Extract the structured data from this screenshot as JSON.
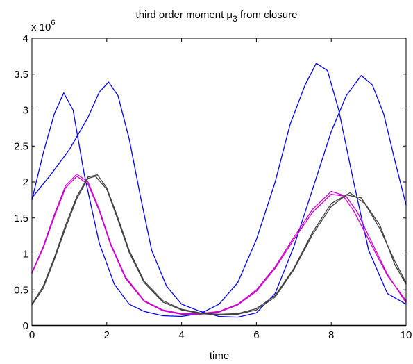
{
  "chart_data": {
    "type": "line",
    "title": "third order moment μ₃ from closure",
    "title_parts": {
      "prefix": "third order moment ",
      "symbol": "μ",
      "subscript": "3",
      "suffix": " from closure"
    },
    "xlabel": "time",
    "ylabel": "",
    "y_scale_note": {
      "base": "x 10",
      "exponent": "6"
    },
    "xlim": [
      0,
      10
    ],
    "ylim": [
      0,
      4
    ],
    "x_ticks": [
      0,
      2,
      4,
      6,
      8,
      10
    ],
    "x_tick_labels": [
      "0",
      "2",
      "4",
      "6",
      "8",
      "10"
    ],
    "y_ticks": [
      0,
      0.5,
      1,
      1.5,
      2,
      2.5,
      3,
      3.5,
      4
    ],
    "y_tick_labels": [
      "0",
      "0.5",
      "1",
      "1.5",
      "2",
      "2.5",
      "3",
      "3.5",
      "4"
    ],
    "grid": false,
    "legend": "none",
    "series": [
      {
        "color": "#0000ff",
        "x": [
          0,
          0.3,
          0.6,
          0.85,
          1.1,
          1.4,
          1.8,
          2.2,
          2.6,
          3.0,
          3.5,
          4.0,
          4.5,
          5.0,
          5.5,
          6.0,
          6.5,
          6.9,
          7.3,
          7.6,
          7.9,
          8.2,
          8.6,
          9.0,
          9.5,
          10.0
        ],
        "y": [
          1.75,
          2.4,
          2.95,
          3.24,
          3.0,
          2.1,
          1.15,
          0.58,
          0.3,
          0.2,
          0.14,
          0.13,
          0.17,
          0.3,
          0.6,
          1.2,
          2.0,
          2.8,
          3.35,
          3.65,
          3.55,
          3.0,
          2.0,
          1.05,
          0.45,
          0.3
        ]
      },
      {
        "color": "#0000ff",
        "x": [
          0,
          0.5,
          1.0,
          1.5,
          1.8,
          2.05,
          2.3,
          2.6,
          2.9,
          3.2,
          3.6,
          4.0,
          4.5,
          5.0,
          5.5,
          6.0,
          6.5,
          7.0,
          7.5,
          8.0,
          8.4,
          8.8,
          9.1,
          9.4,
          9.7,
          10.0
        ],
        "y": [
          1.78,
          2.1,
          2.45,
          2.9,
          3.25,
          3.39,
          3.2,
          2.6,
          1.8,
          1.05,
          0.55,
          0.3,
          0.2,
          0.13,
          0.12,
          0.18,
          0.45,
          1.1,
          1.9,
          2.7,
          3.2,
          3.48,
          3.35,
          2.95,
          2.3,
          1.68
        ]
      },
      {
        "color": "#cc00cc",
        "x": [
          0,
          0.3,
          0.6,
          0.9,
          1.2,
          1.5,
          1.8,
          2.1,
          2.5,
          3.0,
          3.5,
          4.0,
          4.5,
          5.0,
          5.5,
          6.0,
          6.5,
          7.0,
          7.5,
          8.0,
          8.3,
          8.6,
          9.0,
          9.5,
          10.0
        ],
        "y": [
          0.74,
          1.1,
          1.55,
          1.95,
          2.11,
          2.0,
          1.62,
          1.15,
          0.68,
          0.35,
          0.22,
          0.17,
          0.17,
          0.2,
          0.3,
          0.5,
          0.82,
          1.23,
          1.62,
          1.87,
          1.82,
          1.6,
          1.2,
          0.7,
          0.35
        ]
      },
      {
        "color": "#cc00cc",
        "x": [
          0,
          0.3,
          0.6,
          0.9,
          1.2,
          1.5,
          1.8,
          2.1,
          2.5,
          3.0,
          3.5,
          4.0,
          4.5,
          5.0,
          5.5,
          6.0,
          6.5,
          7.0,
          7.5,
          8.0,
          8.4,
          8.7,
          9.0,
          9.5,
          10.0
        ],
        "y": [
          0.73,
          1.08,
          1.52,
          1.92,
          2.08,
          1.97,
          1.6,
          1.13,
          0.66,
          0.34,
          0.21,
          0.16,
          0.16,
          0.19,
          0.29,
          0.48,
          0.8,
          1.2,
          1.58,
          1.83,
          1.8,
          1.58,
          1.25,
          0.72,
          0.32
        ]
      },
      {
        "color": "#404040",
        "x": [
          0,
          0.3,
          0.6,
          0.9,
          1.2,
          1.5,
          1.75,
          2.0,
          2.3,
          2.6,
          3.0,
          3.5,
          4.0,
          4.5,
          5.0,
          5.5,
          6.0,
          6.5,
          7.0,
          7.5,
          8.0,
          8.5,
          8.9,
          9.3,
          9.7,
          10.0
        ],
        "y": [
          0.3,
          0.55,
          0.95,
          1.4,
          1.8,
          2.07,
          2.1,
          1.92,
          1.5,
          1.05,
          0.62,
          0.35,
          0.23,
          0.18,
          0.16,
          0.17,
          0.24,
          0.42,
          0.8,
          1.3,
          1.7,
          1.85,
          1.7,
          1.35,
          0.9,
          0.6
        ]
      },
      {
        "color": "#404040",
        "x": [
          0,
          0.3,
          0.6,
          0.9,
          1.2,
          1.5,
          1.7,
          2.0,
          2.3,
          2.6,
          3.0,
          3.5,
          4.0,
          4.5,
          5.0,
          5.5,
          6.0,
          6.5,
          7.0,
          7.5,
          8.0,
          8.4,
          8.8,
          9.3,
          9.7,
          10.0
        ],
        "y": [
          0.29,
          0.52,
          0.92,
          1.36,
          1.77,
          2.05,
          2.08,
          1.9,
          1.47,
          1.02,
          0.6,
          0.33,
          0.22,
          0.17,
          0.15,
          0.16,
          0.22,
          0.4,
          0.78,
          1.27,
          1.66,
          1.82,
          1.78,
          1.4,
          0.85,
          0.58
        ]
      }
    ]
  }
}
